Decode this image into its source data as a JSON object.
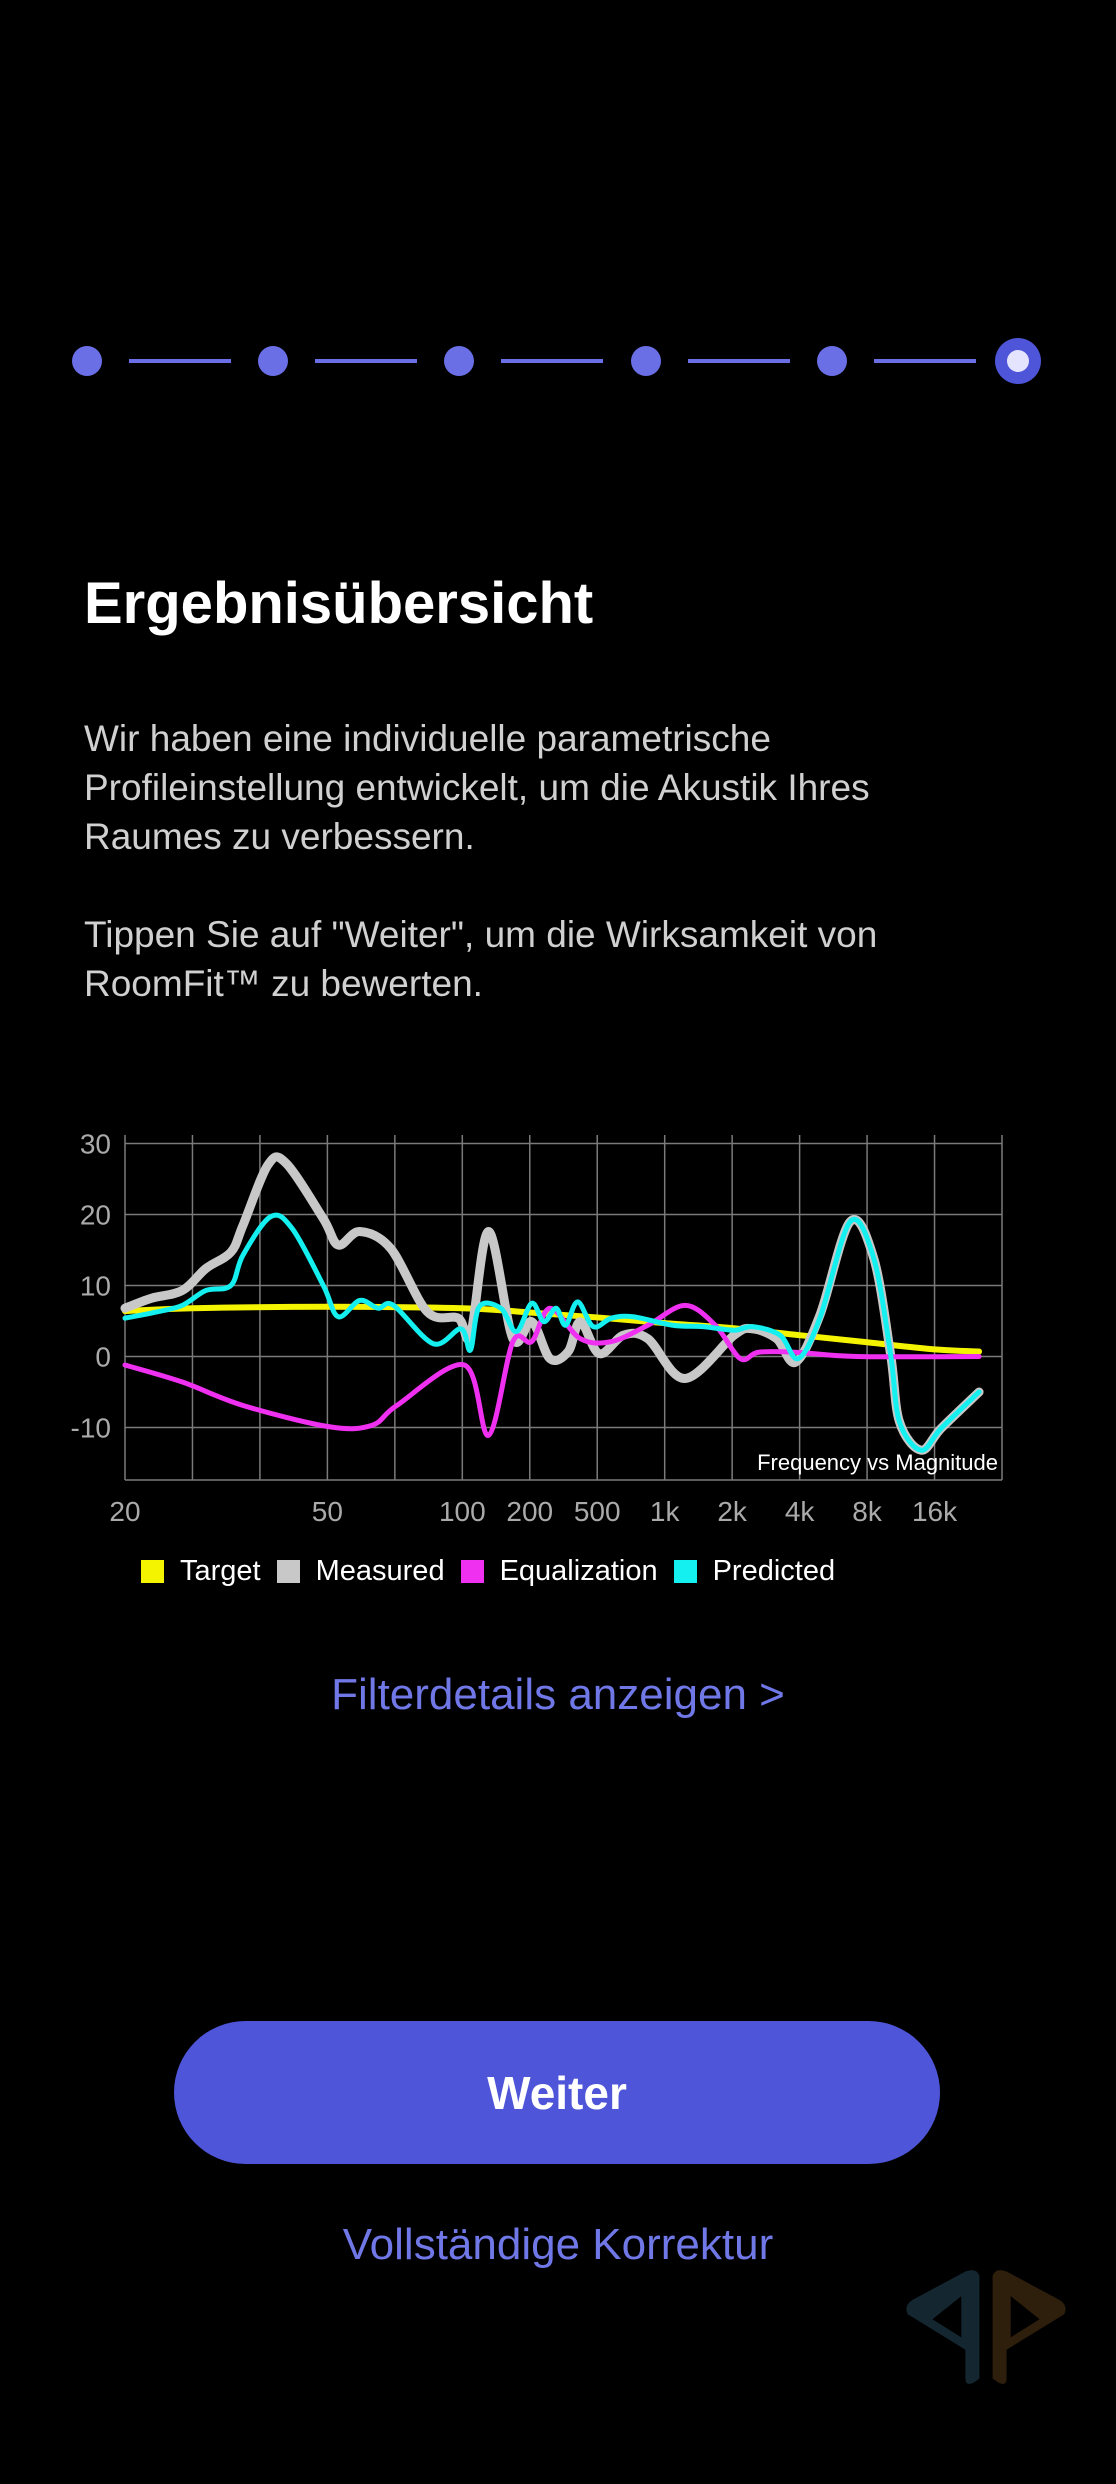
{
  "stepper": {
    "total_steps": 6,
    "current_step": 6
  },
  "header": {
    "title": "Ergebnisübersicht"
  },
  "body": {
    "paragraph1": [
      "Wir haben eine individuelle parametrische",
      "Profileinstellung entwickelt, um die Akustik Ihres",
      "Raumes zu verbessern."
    ],
    "paragraph2": [
      "Tippen Sie auf \"Weiter\", um die Wirksamkeit von",
      "RoomFit™ zu bewerten."
    ]
  },
  "chart_data": {
    "type": "line",
    "title": "Frequency vs Magnitude",
    "xlabel": "",
    "ylabel": "",
    "x_scale": "tick_index",
    "x_ticks": [
      {
        "label": "20",
        "index": 0
      },
      {
        "label": "50",
        "index": 3
      },
      {
        "label": "100",
        "index": 5
      },
      {
        "label": "200",
        "index": 6
      },
      {
        "label": "500",
        "index": 7
      },
      {
        "label": "1k",
        "index": 8
      },
      {
        "label": "2k",
        "index": 9
      },
      {
        "label": "4k",
        "index": 10
      },
      {
        "label": "8k",
        "index": 11
      },
      {
        "label": "16k",
        "index": 12
      }
    ],
    "x_grid_count": 13,
    "y_ticks": [
      "30",
      "20",
      "10",
      "0",
      "-10"
    ],
    "y_tick_values": [
      30,
      20,
      10,
      0,
      -10
    ],
    "ylim": [
      -17.4,
      31.2
    ],
    "grid": true,
    "legend_position": "bottom",
    "series": [
      {
        "name": "Target",
        "color": "#f4f400",
        "points": [
          [
            0,
            6.4
          ],
          [
            1,
            6.8
          ],
          [
            3,
            7
          ],
          [
            5,
            6.8
          ],
          [
            6,
            6.2
          ],
          [
            7,
            5.5
          ],
          [
            8,
            4.7
          ],
          [
            9,
            4
          ],
          [
            10,
            3
          ],
          [
            11,
            2
          ],
          [
            12,
            1
          ],
          [
            12.66,
            0.7
          ]
        ]
      },
      {
        "name": "Measured",
        "color": "#c8c8c8",
        "points": [
          [
            0,
            6.8
          ],
          [
            0.39,
            8.2
          ],
          [
            0.85,
            9.3
          ],
          [
            1.2,
            12.4
          ],
          [
            1.57,
            14.7
          ],
          [
            1.75,
            18.5
          ],
          [
            2.12,
            27
          ],
          [
            2.39,
            27.2
          ],
          [
            2.94,
            19.4
          ],
          [
            3.16,
            15.7
          ],
          [
            3.48,
            17.6
          ],
          [
            3.94,
            15.2
          ],
          [
            4.48,
            6.3
          ],
          [
            4.94,
            5.4
          ],
          [
            5.12,
            3
          ],
          [
            5.39,
            17.6
          ],
          [
            5.75,
            2.5
          ],
          [
            6.03,
            4.9
          ],
          [
            6.3,
            -0.3
          ],
          [
            6.57,
            0.7
          ],
          [
            6.75,
            4.9
          ],
          [
            7.03,
            0.4
          ],
          [
            7.39,
            3
          ],
          [
            7.75,
            2.5
          ],
          [
            8.3,
            -3.1
          ],
          [
            9.03,
            3
          ],
          [
            9.3,
            3.9
          ],
          [
            9.66,
            2.5
          ],
          [
            9.94,
            -0.8
          ],
          [
            10.3,
            5.8
          ],
          [
            10.75,
            19
          ],
          [
            11.1,
            13.8
          ],
          [
            11.35,
            0.2
          ],
          [
            11.48,
            -9.2
          ],
          [
            11.8,
            -13.2
          ],
          [
            12.1,
            -10.1
          ],
          [
            12.66,
            -5
          ]
        ]
      },
      {
        "name": "Equalization",
        "color": "#f030f0",
        "points": [
          [
            0,
            -1.2
          ],
          [
            0.85,
            -3.6
          ],
          [
            1.75,
            -6.9
          ],
          [
            3.03,
            -9.9
          ],
          [
            3.66,
            -9.7
          ],
          [
            4.03,
            -6.9
          ],
          [
            5.03,
            -1.2
          ],
          [
            5.39,
            -11.1
          ],
          [
            5.75,
            2.1
          ],
          [
            6.03,
            2.1
          ],
          [
            6.3,
            6.8
          ],
          [
            6.75,
            2.5
          ],
          [
            7.21,
            2.1
          ],
          [
            7.75,
            4.4
          ],
          [
            8.3,
            7.2
          ],
          [
            8.75,
            4.4
          ],
          [
            9.12,
            -0.3
          ],
          [
            9.39,
            0.6
          ],
          [
            9.94,
            0.6
          ],
          [
            10.85,
            0
          ],
          [
            12.66,
            0
          ]
        ]
      },
      {
        "name": "Predicted",
        "color": "#14f0f0",
        "points": [
          [
            0,
            5.4
          ],
          [
            0.48,
            6.3
          ],
          [
            0.85,
            7.2
          ],
          [
            1.2,
            9.3
          ],
          [
            1.57,
            10
          ],
          [
            1.75,
            14.3
          ],
          [
            2.16,
            19.7
          ],
          [
            2.48,
            18
          ],
          [
            2.94,
            10
          ],
          [
            3.16,
            5.6
          ],
          [
            3.48,
            7.9
          ],
          [
            3.75,
            6.8
          ],
          [
            3.98,
            7.2
          ],
          [
            4.57,
            1.8
          ],
          [
            4.98,
            3.9
          ],
          [
            5.12,
            0.9
          ],
          [
            5.25,
            7
          ],
          [
            5.57,
            6.8
          ],
          [
            5.8,
            3.5
          ],
          [
            6.03,
            7.5
          ],
          [
            6.21,
            4.9
          ],
          [
            6.39,
            6.8
          ],
          [
            6.53,
            4.4
          ],
          [
            6.71,
            7.7
          ],
          [
            6.94,
            4.2
          ],
          [
            7.21,
            5.4
          ],
          [
            7.53,
            5.6
          ],
          [
            8.12,
            4.4
          ],
          [
            8.57,
            4.2
          ],
          [
            9.03,
            3.7
          ],
          [
            9.3,
            4.2
          ],
          [
            9.71,
            3
          ],
          [
            9.98,
            -0.3
          ],
          [
            10.3,
            5.4
          ],
          [
            10.75,
            19
          ],
          [
            11.1,
            13.8
          ],
          [
            11.35,
            0.2
          ],
          [
            11.48,
            -9.2
          ],
          [
            11.8,
            -13.2
          ],
          [
            12.1,
            -10.1
          ],
          [
            12.66,
            -5
          ]
        ]
      }
    ]
  },
  "legend": [
    {
      "label": "Target",
      "color": "#f4f400"
    },
    {
      "label": "Measured",
      "color": "#c8c8c8"
    },
    {
      "label": "Equalization",
      "color": "#f030f0"
    },
    {
      "label": "Predicted",
      "color": "#14f0f0"
    }
  ],
  "links": {
    "filter_details": "Filterdetails anzeigen >",
    "full_correction": "Vollständige Korrektur"
  },
  "buttons": {
    "next": "Weiter"
  },
  "colors": {
    "accent": "#4e55d8",
    "link": "#7077e6",
    "step": "#6a6fe6"
  }
}
